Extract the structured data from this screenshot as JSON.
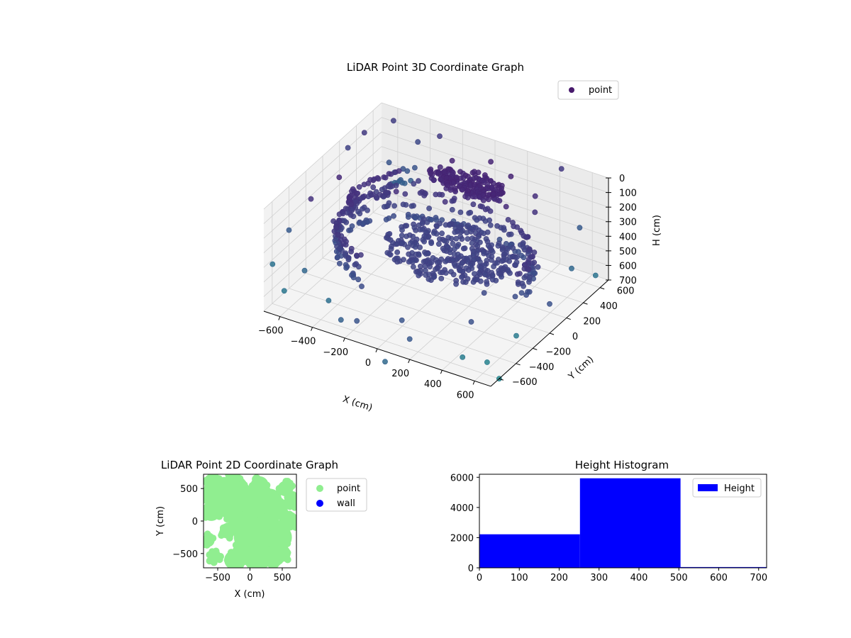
{
  "colors": {
    "colormap": [
      "#440154",
      "#472d7b",
      "#3b528b",
      "#2c728e",
      "#21918c",
      "#28ae80",
      "#5ec962",
      "#addc30"
    ],
    "point2d": "#90ee90",
    "wall": "#0000ff",
    "histogram": "#0000ff",
    "legend_point3d": "#481a6c"
  },
  "chart_data": [
    {
      "type": "scatter3d",
      "title": "LiDAR Point 3D Coordinate Graph",
      "xlabel": "X (cm)",
      "ylabel": "Y (cm)",
      "zlabel": "H (cm)",
      "xlim": [
        -700,
        700
      ],
      "ylim": [
        -700,
        700
      ],
      "zlim": [
        0,
        700
      ],
      "zaxis_inverted": true,
      "x_ticks": [
        "−600",
        "−400",
        "−200",
        "0",
        "200",
        "400",
        "600"
      ],
      "y_ticks": [
        "−600",
        "−400",
        "−200",
        "0",
        "200",
        "400",
        "600"
      ],
      "z_ticks": [
        "0",
        "100",
        "200",
        "300",
        "400",
        "500",
        "600",
        "700"
      ],
      "x_tick_values": [
        -600,
        -400,
        -200,
        0,
        200,
        400,
        600
      ],
      "y_tick_values": [
        -600,
        -400,
        -200,
        0,
        200,
        400,
        600
      ],
      "z_tick_values": [
        0,
        100,
        200,
        300,
        400,
        500,
        600,
        700
      ],
      "legend": {
        "label": "point",
        "placement": "top-right"
      },
      "grid": true,
      "series": [
        {
          "name": "point",
          "structures": [
            {
              "shape": "ring",
              "cx": 0,
              "cy": -20,
              "rx": 560,
              "ry": 450,
              "arc_deg": [
                -10,
                245
              ],
              "z": [
                300,
                380,
                460
              ],
              "count": 260
            },
            {
              "shape": "filled-disk",
              "cx": 80,
              "cy": 20,
              "rx": 380,
              "ry": 320,
              "z": [
                370,
                400
              ],
              "count": 340
            },
            {
              "shape": "filled-disk",
              "cx": -40,
              "cy": 450,
              "rx": 230,
              "ry": 110,
              "z": [
                150,
                210
              ],
              "count": 200
            },
            {
              "shape": "arc",
              "cx": 0,
              "cy": 150,
              "rx": 560,
              "ry": 520,
              "arc_deg": [
                130,
                200
              ],
              "z": [
                250,
                330
              ],
              "count": 70
            }
          ],
          "outliers": [
            [
              -650,
              400,
              30
            ],
            [
              -600,
              650,
              60
            ],
            [
              -300,
              620,
              40
            ],
            [
              420,
              680,
              30
            ],
            [
              0,
              650,
              120
            ],
            [
              -700,
              300,
              100
            ],
            [
              -650,
              100,
              180
            ],
            [
              -720,
              -100,
              250
            ],
            [
              -700,
              -400,
              300
            ],
            [
              -500,
              -600,
              400
            ],
            [
              -300,
              -700,
              480
            ],
            [
              -100,
              -750,
              520
            ],
            [
              200,
              -700,
              560
            ],
            [
              500,
              -650,
              600
            ],
            [
              650,
              -300,
              580
            ],
            [
              700,
              0,
              500
            ],
            [
              680,
              300,
              420
            ],
            [
              600,
              550,
              300
            ],
            [
              300,
              600,
              220
            ],
            [
              -400,
              -300,
              420
            ],
            [
              450,
              -450,
              480
            ],
            [
              -200,
              -500,
              450
            ],
            [
              100,
              -600,
              520
            ],
            [
              550,
              150,
              380
            ],
            [
              -550,
              500,
              250
            ],
            [
              350,
              500,
              260
            ],
            [
              -150,
              480,
              80
            ],
            [
              150,
              600,
              140
            ],
            [
              -450,
              650,
              150
            ],
            [
              600,
              -550,
              650
            ],
            [
              -250,
              -650,
              620
            ],
            [
              750,
              450,
              520
            ],
            [
              -600,
              -650,
              550
            ],
            [
              250,
              350,
              180
            ],
            [
              -350,
              200,
              220
            ],
            [
              400,
              -200,
              430
            ],
            [
              -100,
              300,
              250
            ],
            [
              700,
              -600,
              700
            ],
            [
              100,
              -800,
              700
            ],
            [
              -750,
              -500,
              500
            ]
          ]
        }
      ]
    },
    {
      "type": "scatter",
      "title": "LiDAR Point 2D Coordinate Graph",
      "xlabel": "X (cm)",
      "ylabel": "Y (cm)",
      "xlim": [
        -720,
        720
      ],
      "ylim": [
        -720,
        720
      ],
      "x_ticks": [
        "−500",
        "0",
        "500"
      ],
      "y_ticks": [
        "−500",
        "0",
        "500"
      ],
      "x_tick_values": [
        -500,
        0,
        500
      ],
      "y_tick_values": [
        -500,
        0,
        500
      ],
      "legend": {
        "placement": "outside-right"
      },
      "series": [
        {
          "name": "point",
          "blobs": [
            [
              -400,
              450,
              230
            ],
            [
              -250,
              600,
              150
            ],
            [
              -500,
              300,
              180
            ],
            [
              -600,
              150,
              150
            ],
            [
              -550,
              400,
              200
            ],
            [
              -300,
              200,
              180
            ],
            [
              -150,
              450,
              160
            ],
            [
              50,
              300,
              180
            ],
            [
              150,
              100,
              220
            ],
            [
              250,
              -100,
              230
            ],
            [
              300,
              300,
              200
            ],
            [
              400,
              200,
              180
            ],
            [
              450,
              -250,
              200
            ],
            [
              200,
              -350,
              230
            ],
            [
              -50,
              -250,
              200
            ],
            [
              -100,
              -500,
              180
            ],
            [
              -250,
              -600,
              150
            ],
            [
              100,
              -600,
              180
            ],
            [
              350,
              -550,
              170
            ],
            [
              550,
              500,
              120
            ],
            [
              600,
              0,
              150
            ],
            [
              -650,
              -300,
              100
            ],
            [
              -550,
              -550,
              100
            ],
            [
              -50,
              100,
              170
            ],
            [
              500,
              -500,
              130
            ],
            [
              150,
              550,
              140
            ],
            [
              -350,
              -150,
              120
            ],
            [
              -600,
              600,
              120
            ],
            [
              650,
              300,
              110
            ],
            [
              -200,
              0,
              120
            ]
          ]
        },
        {
          "name": "wall",
          "points": []
        }
      ]
    },
    {
      "type": "bar",
      "title": "Height Histogram",
      "xlabel": "",
      "ylabel": "",
      "bin_edges": [
        0,
        252,
        504,
        756
      ],
      "values": [
        2220,
        5930,
        50
      ],
      "xlim": [
        0,
        720
      ],
      "ylim": [
        0,
        6200
      ],
      "x_ticks": [
        "0",
        "100",
        "200",
        "300",
        "400",
        "500",
        "600",
        "700"
      ],
      "y_ticks": [
        "0",
        "2000",
        "4000",
        "6000"
      ],
      "x_tick_values": [
        0,
        100,
        200,
        300,
        400,
        500,
        600,
        700
      ],
      "y_tick_values": [
        0,
        2000,
        4000,
        6000
      ],
      "legend": {
        "placement": "top-right"
      },
      "series": [
        {
          "name": "Height",
          "values": [
            2220,
            5930,
            50
          ]
        }
      ]
    }
  ]
}
